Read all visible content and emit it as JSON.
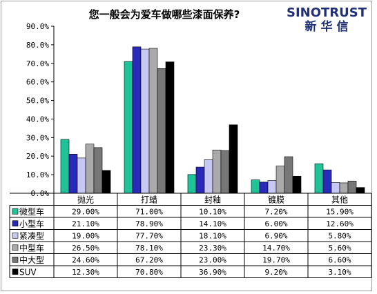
{
  "brand": {
    "name": "SINOTRUST",
    "name_cn": "新华信"
  },
  "chart_data": {
    "type": "bar",
    "title": "您一般会为爱车做哪些漆面保养?",
    "categories": [
      "抛光",
      "打蜡",
      "封釉",
      "镀膜",
      "其他"
    ],
    "ylim": [
      0,
      90
    ],
    "y_tick_labels": [
      "0.0%",
      "10.0%",
      "20.0%",
      "30.0%",
      "40.0%",
      "50.0%",
      "60.0%",
      "70.0%",
      "80.0%",
      "90.0%"
    ],
    "grid": false,
    "legend": "table-below",
    "series": [
      {
        "name": "微型车",
        "color": "#20c398",
        "values": [
          29.0,
          71.0,
          10.1,
          7.2,
          15.9
        ],
        "labels": [
          "29.00%",
          "71.00%",
          "10.10%",
          "7.20%",
          "15.90%"
        ]
      },
      {
        "name": "小型车",
        "color": "#2a2ab8",
        "values": [
          21.1,
          78.9,
          14.1,
          6.0,
          12.6
        ],
        "labels": [
          "21.10%",
          "78.90%",
          "14.10%",
          "6.00%",
          "12.60%"
        ]
      },
      {
        "name": "紧凑型",
        "color": "#c8c8f4",
        "values": [
          19.0,
          77.7,
          18.1,
          6.9,
          5.8
        ],
        "labels": [
          "19.00%",
          "77.70%",
          "18.10%",
          "6.90%",
          "5.80%"
        ]
      },
      {
        "name": "中型车",
        "color": "#aaaaaa",
        "values": [
          26.5,
          78.1,
          23.3,
          14.7,
          5.6
        ],
        "labels": [
          "26.50%",
          "78.10%",
          "23.30%",
          "14.70%",
          "5.60%"
        ]
      },
      {
        "name": "中大型",
        "color": "#777777",
        "values": [
          24.6,
          67.2,
          23.0,
          19.7,
          6.6
        ],
        "labels": [
          "24.60%",
          "67.20%",
          "23.00%",
          "19.70%",
          "6.60%"
        ]
      },
      {
        "name": "SUV",
        "color": "#000000",
        "values": [
          12.3,
          70.8,
          36.9,
          9.2,
          3.1
        ],
        "labels": [
          "12.30%",
          "70.80%",
          "36.90%",
          "9.20%",
          "3.10%"
        ]
      }
    ]
  }
}
